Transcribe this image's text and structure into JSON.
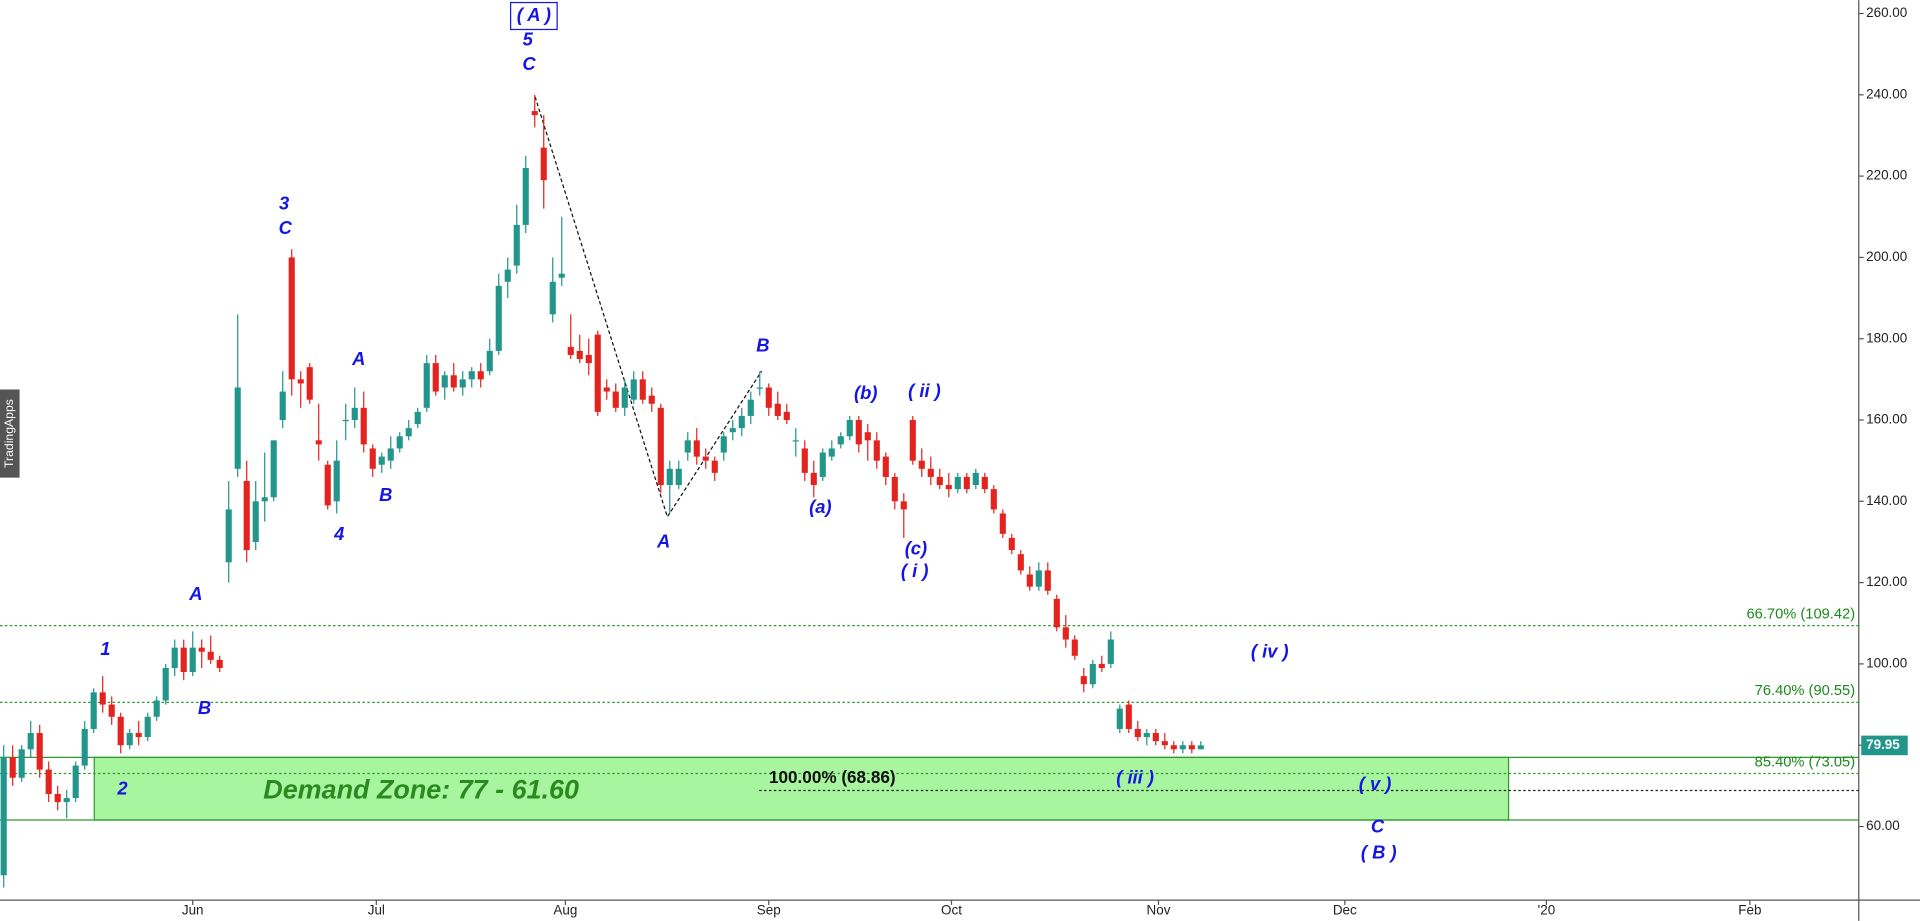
{
  "chart_data": {
    "type": "candlestick",
    "watermark": "TradingApps",
    "up_color": "#22968a",
    "down_color": "#e3231e",
    "candles": {
      "open": [
        48,
        77,
        72,
        79,
        83,
        74,
        68,
        66,
        67,
        75,
        84,
        93,
        90,
        87,
        80,
        83,
        82,
        87,
        91,
        99,
        104,
        98,
        104,
        103,
        101,
        125,
        148,
        145,
        130,
        140,
        141,
        160,
        200,
        170,
        173,
        155,
        149,
        140,
        160,
        160,
        163,
        153,
        149,
        150,
        153,
        156,
        159,
        163,
        174,
        168,
        171,
        168,
        170,
        172,
        172,
        177,
        194,
        198,
        208,
        236,
        227,
        186,
        195,
        178,
        177,
        176,
        181,
        168,
        167,
        163,
        165,
        170,
        166,
        163,
        144,
        144,
        152,
        155,
        151,
        150,
        152,
        157,
        158,
        161,
        168,
        168,
        164,
        162,
        155,
        153,
        147,
        146,
        151,
        154,
        156,
        160,
        157,
        155,
        151,
        146,
        140,
        160,
        150,
        148,
        146,
        144,
        143,
        146,
        144,
        146,
        143,
        137,
        131,
        127,
        122,
        119,
        123,
        116,
        109,
        106,
        97,
        95,
        100,
        100,
        84,
        90,
        84,
        82,
        83,
        81,
        80,
        79,
        80,
        79
      ],
      "high": [
        80,
        80,
        80,
        86,
        85,
        76,
        70,
        69,
        76,
        86,
        94,
        97,
        92,
        88,
        84,
        86,
        88,
        92,
        100,
        106,
        106,
        108,
        106,
        107,
        102,
        145,
        186,
        150,
        145,
        152,
        155,
        172,
        202,
        172,
        174,
        164,
        150,
        155,
        164,
        168,
        167,
        154,
        152,
        156,
        157,
        160,
        163,
        176,
        176,
        172,
        174,
        172,
        173,
        174,
        180,
        196,
        200,
        213,
        225,
        240,
        235,
        200,
        210,
        186,
        181,
        180,
        182,
        170,
        169,
        170,
        172,
        172,
        168,
        164,
        150,
        150,
        157,
        158,
        153,
        151,
        157,
        160,
        163,
        167,
        172,
        169,
        167,
        164,
        158,
        155,
        150,
        153,
        155,
        157,
        161,
        161,
        159,
        157,
        152,
        147,
        142,
        161,
        153,
        151,
        148,
        147,
        147,
        147,
        148,
        147,
        144,
        138,
        132,
        128,
        124,
        125,
        125,
        117,
        112,
        107,
        99,
        101,
        102,
        108,
        90,
        91,
        86,
        84,
        84,
        83,
        81,
        81,
        81,
        81
      ],
      "low": [
        45,
        70,
        71,
        77,
        72,
        66,
        64,
        62,
        66,
        74,
        83,
        88,
        85,
        78,
        79,
        80,
        81,
        86,
        90,
        97,
        96,
        97,
        99,
        100,
        98,
        120,
        146,
        125,
        128,
        135,
        140,
        158,
        166,
        163,
        164,
        150,
        138,
        137,
        155,
        158,
        152,
        146,
        147,
        148,
        152,
        155,
        158,
        162,
        166,
        165,
        167,
        166,
        168,
        168,
        171,
        176,
        190,
        196,
        206,
        232,
        212,
        184,
        193,
        175,
        174,
        171,
        161,
        165,
        162,
        161,
        164,
        164,
        162,
        142,
        137,
        143,
        150,
        149,
        148,
        145,
        150,
        155,
        156,
        159,
        166,
        161,
        160,
        159,
        151,
        145,
        141,
        145,
        150,
        153,
        155,
        152,
        150,
        148,
        144,
        138,
        131,
        149,
        146,
        144,
        143,
        141,
        142,
        142,
        143,
        142,
        137,
        131,
        127,
        122,
        118,
        118,
        117,
        108,
        104,
        101,
        93,
        94,
        98,
        99,
        83,
        83,
        81,
        80,
        80,
        79,
        78,
        78,
        78,
        79
      ],
      "close": [
        77,
        72,
        79,
        83,
        74,
        68,
        66,
        67,
        75,
        84,
        93,
        90,
        87,
        80,
        83,
        82,
        87,
        91,
        99,
        104,
        98,
        104,
        103,
        101,
        99,
        138,
        168,
        128,
        140,
        141,
        155,
        167,
        170,
        169,
        165,
        154,
        139,
        150,
        160,
        163,
        154,
        148,
        151,
        153,
        156,
        158,
        162,
        174,
        167,
        171,
        168,
        170,
        172,
        170,
        177,
        193,
        197,
        208,
        222,
        235,
        219,
        194,
        196,
        176,
        175,
        174,
        162,
        167,
        163,
        168,
        170,
        165,
        164,
        144,
        148,
        148,
        155,
        151,
        150,
        147,
        156,
        158,
        161,
        165,
        168,
        163,
        161,
        160,
        155,
        147,
        144,
        152,
        153,
        156,
        160,
        154,
        155,
        150,
        146,
        140,
        138,
        150,
        148,
        146,
        144,
        143,
        146,
        143,
        147,
        143,
        138,
        132,
        128,
        123,
        119,
        123,
        118,
        109,
        106,
        102,
        95,
        100,
        99,
        106,
        89,
        84,
        82,
        83,
        81,
        80,
        79,
        80,
        79,
        79.95
      ]
    },
    "xlim": [
      -0.41,
      206.1
    ],
    "ylim": [
      41.9,
      263.3
    ],
    "xticks": [
      {
        "value": 21,
        "label": "Jun"
      },
      {
        "value": 41.4,
        "label": "Jul"
      },
      {
        "value": 62.4,
        "label": "Aug"
      },
      {
        "value": 85,
        "label": "Sep"
      },
      {
        "value": 105.3,
        "label": "Oct"
      },
      {
        "value": 128.3,
        "label": "Nov"
      },
      {
        "value": 149,
        "label": "Dec"
      },
      {
        "value": 171.4,
        "label": "'20"
      },
      {
        "value": 194,
        "label": "Feb"
      }
    ],
    "yticks": [
      {
        "value": 60,
        "label": "60.00"
      },
      {
        "value": 80,
        "label": "80.00"
      },
      {
        "value": 100,
        "label": "100.00"
      },
      {
        "value": 120,
        "label": "120.00"
      },
      {
        "value": 140,
        "label": "140.00"
      },
      {
        "value": 160,
        "label": "160.00"
      },
      {
        "value": 180,
        "label": "180.00"
      },
      {
        "value": 200,
        "label": "200.00"
      },
      {
        "value": 220,
        "label": "220.00"
      },
      {
        "value": 240,
        "label": "240.00"
      },
      {
        "value": 260,
        "label": "260.00"
      }
    ],
    "fib_levels": [
      {
        "value": 109.42,
        "label": "66.70% (109.42)"
      },
      {
        "value": 90.55,
        "label": "76.40% (90.55)"
      },
      {
        "value": 73.05,
        "label": "85.40% (73.05)"
      },
      {
        "value": 68.86,
        "label": "100.00% (68.86)"
      }
    ],
    "demand_zone": {
      "label": "Demand Zone: 77 - 61.60",
      "high": 77,
      "low": 61.6,
      "color": "#a8f5a0"
    },
    "wave_labels": [
      "( A )",
      "5",
      "C",
      "3",
      "C",
      "A",
      "1",
      "2",
      "B",
      "A",
      "4",
      "B",
      "B",
      "A",
      "(a)",
      "(b)",
      "( ii )",
      "(c)",
      "( i )",
      "( iv )",
      "( iii )",
      "( v )",
      "C",
      "( B )"
    ]
  }
}
